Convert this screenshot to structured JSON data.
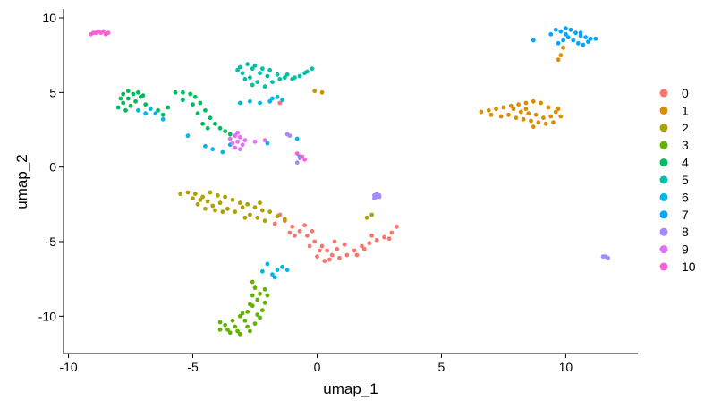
{
  "chart_data": {
    "type": "scatter",
    "title": "",
    "xlabel": "umap_1",
    "ylabel": "umap_2",
    "xlim": [
      -10.2,
      12.9
    ],
    "ylim": [
      -12.5,
      10.6
    ],
    "x_ticks": [
      -10,
      -5,
      0,
      5,
      10
    ],
    "y_ticks": [
      -10,
      -5,
      0,
      5,
      10
    ],
    "x_tick_labels": [
      "-10",
      "-5",
      "0",
      "5",
      "10"
    ],
    "y_tick_labels": [
      "-10",
      "-5",
      "0",
      "5",
      "10"
    ],
    "grid": false,
    "legend_position": "right",
    "series": [
      {
        "name": "0",
        "color": "#F8766D",
        "points": [
          [
            -1.3,
            -3.6
          ],
          [
            -1.0,
            -4.0
          ],
          [
            -0.7,
            -4.3
          ],
          [
            -0.4,
            -4.6
          ],
          [
            -0.1,
            -5.0
          ],
          [
            0.2,
            -5.3
          ],
          [
            0.4,
            -5.6
          ],
          [
            0.6,
            -5.9
          ],
          [
            0.9,
            -6.1
          ],
          [
            1.2,
            -5.9
          ],
          [
            1.5,
            -5.6
          ],
          [
            1.8,
            -5.3
          ],
          [
            2.1,
            -5.1
          ],
          [
            2.4,
            -4.9
          ],
          [
            2.7,
            -4.7
          ],
          [
            3.0,
            -4.4
          ],
          [
            3.2,
            -4.0
          ],
          [
            -0.9,
            -4.6
          ],
          [
            -0.3,
            -5.3
          ],
          [
            0.1,
            -5.6
          ],
          [
            0.5,
            -6.2
          ],
          [
            0.8,
            -5.5
          ],
          [
            1.1,
            -5.2
          ],
          [
            -1.1,
            -4.4
          ],
          [
            -0.5,
            -3.9
          ],
          [
            -0.2,
            -4.3
          ],
          [
            0.0,
            -6.0
          ],
          [
            0.3,
            -6.3
          ],
          [
            1.6,
            -5.9
          ],
          [
            1.9,
            -5.5
          ],
          [
            -1.5,
            -3.2
          ],
          [
            0.7,
            -5.0
          ],
          [
            2.2,
            -4.6
          ],
          [
            2.9,
            -4.8
          ],
          [
            -1.5,
            4.3
          ],
          [
            -1.7,
            -3.8
          ]
        ]
      },
      {
        "name": "1",
        "color": "#DB8E00",
        "points": [
          [
            6.6,
            3.7
          ],
          [
            6.9,
            3.8
          ],
          [
            7.2,
            3.9
          ],
          [
            7.5,
            4.0
          ],
          [
            7.8,
            4.1
          ],
          [
            8.1,
            4.2
          ],
          [
            8.4,
            4.3
          ],
          [
            8.7,
            4.4
          ],
          [
            9.0,
            4.3
          ],
          [
            9.3,
            4.0
          ],
          [
            9.6,
            3.7
          ],
          [
            9.8,
            3.4
          ],
          [
            8.0,
            3.3
          ],
          [
            8.3,
            3.2
          ],
          [
            8.6,
            3.1
          ],
          [
            8.9,
            3.0
          ],
          [
            9.2,
            2.9
          ],
          [
            7.4,
            3.4
          ],
          [
            7.7,
            3.5
          ],
          [
            8.2,
            3.7
          ],
          [
            8.5,
            3.6
          ],
          [
            8.8,
            3.5
          ],
          [
            9.1,
            3.3
          ],
          [
            9.4,
            3.4
          ],
          [
            9.7,
            3.9
          ],
          [
            7.0,
            3.5
          ],
          [
            9.5,
            3.0
          ],
          [
            8.7,
            2.7
          ],
          [
            -0.1,
            5.1
          ],
          [
            0.2,
            5.0
          ],
          [
            9.9,
            8.0
          ],
          [
            9.8,
            7.5
          ],
          [
            9.7,
            7.2
          ],
          [
            7.9,
            3.9
          ],
          [
            8.4,
            3.9
          ]
        ]
      },
      {
        "name": "2",
        "color": "#AEA200",
        "points": [
          [
            -5.5,
            -1.8
          ],
          [
            -5.2,
            -1.7
          ],
          [
            -4.9,
            -1.8
          ],
          [
            -4.6,
            -2.0
          ],
          [
            -4.3,
            -1.7
          ],
          [
            -4.0,
            -1.9
          ],
          [
            -3.7,
            -2.0
          ],
          [
            -3.4,
            -2.2
          ],
          [
            -3.1,
            -2.4
          ],
          [
            -2.8,
            -2.5
          ],
          [
            -2.5,
            -2.7
          ],
          [
            -2.2,
            -2.9
          ],
          [
            -1.9,
            -3.0
          ],
          [
            -1.6,
            -3.3
          ],
          [
            -1.3,
            -3.5
          ],
          [
            -4.8,
            -2.5
          ],
          [
            -4.5,
            -2.8
          ],
          [
            -4.2,
            -2.6
          ],
          [
            -3.9,
            -2.4
          ],
          [
            -3.6,
            -2.8
          ],
          [
            -3.3,
            -3.0
          ],
          [
            -3.0,
            -2.7
          ],
          [
            -2.7,
            -3.2
          ],
          [
            -2.4,
            -3.4
          ],
          [
            -2.1,
            -3.6
          ],
          [
            -4.7,
            -2.2
          ],
          [
            -4.4,
            -2.3
          ],
          [
            -5.0,
            -2.1
          ],
          [
            -3.8,
            -3.0
          ],
          [
            -2.9,
            -3.4
          ],
          [
            -2.3,
            -2.4
          ],
          [
            2.2,
            -3.2
          ],
          [
            2.0,
            -3.4
          ],
          [
            -4.1,
            -2.9
          ]
        ]
      },
      {
        "name": "3",
        "color": "#64B200",
        "points": [
          [
            -2.5,
            -8.1
          ],
          [
            -2.3,
            -8.5
          ],
          [
            -2.4,
            -8.9
          ],
          [
            -2.6,
            -9.3
          ],
          [
            -2.8,
            -9.7
          ],
          [
            -3.1,
            -10.0
          ],
          [
            -3.4,
            -10.3
          ],
          [
            -3.7,
            -10.6
          ],
          [
            -3.9,
            -10.9
          ],
          [
            -3.5,
            -11.1
          ],
          [
            -3.1,
            -11.2
          ],
          [
            -2.7,
            -11.0
          ],
          [
            -2.5,
            -10.5
          ],
          [
            -2.3,
            -10.1
          ],
          [
            -2.2,
            -9.6
          ],
          [
            -2.1,
            -9.1
          ],
          [
            -2.0,
            -8.6
          ],
          [
            -2.6,
            -7.7
          ],
          [
            -2.9,
            -10.3
          ],
          [
            -3.3,
            -10.7
          ],
          [
            -3.6,
            -10.9
          ],
          [
            -3.0,
            -9.8
          ],
          [
            -2.7,
            -9.2
          ],
          [
            -2.4,
            -9.9
          ],
          [
            -2.8,
            -10.7
          ],
          [
            -3.2,
            -11.0
          ],
          [
            -2.6,
            -8.6
          ],
          [
            -3.9,
            -10.4
          ],
          [
            -2.1,
            -8.2
          ]
        ]
      },
      {
        "name": "4",
        "color": "#00BD5C",
        "points": [
          [
            -8.0,
            4.0
          ],
          [
            -7.8,
            4.3
          ],
          [
            -7.6,
            4.6
          ],
          [
            -7.4,
            4.9
          ],
          [
            -7.2,
            5.0
          ],
          [
            -7.0,
            4.8
          ],
          [
            -7.7,
            3.8
          ],
          [
            -7.5,
            4.1
          ],
          [
            -7.3,
            4.4
          ],
          [
            -7.1,
            4.7
          ],
          [
            -6.9,
            4.2
          ],
          [
            -7.9,
            4.6
          ],
          [
            -7.6,
            5.1
          ],
          [
            -5.7,
            5.0
          ],
          [
            -5.4,
            5.0
          ],
          [
            -5.1,
            4.9
          ],
          [
            -4.9,
            4.7
          ],
          [
            -4.7,
            4.3
          ],
          [
            -4.5,
            3.8
          ],
          [
            -4.3,
            3.3
          ],
          [
            -4.1,
            2.9
          ],
          [
            -3.9,
            2.6
          ],
          [
            -3.7,
            2.4
          ],
          [
            -3.5,
            2.2
          ],
          [
            -5.4,
            4.5
          ],
          [
            -5.0,
            4.2
          ],
          [
            -4.8,
            3.6
          ],
          [
            -6.4,
            3.8
          ],
          [
            -6.2,
            3.5
          ],
          [
            -4.6,
            2.9
          ],
          [
            -6.0,
            4.0
          ],
          [
            -7.8,
            4.9
          ],
          [
            -4.4,
            2.6
          ]
        ]
      },
      {
        "name": "5",
        "color": "#00C1A7",
        "points": [
          [
            -3.1,
            6.7
          ],
          [
            -2.8,
            6.9
          ],
          [
            -2.5,
            6.8
          ],
          [
            -2.2,
            6.6
          ],
          [
            -1.9,
            6.5
          ],
          [
            -1.6,
            6.2
          ],
          [
            -1.3,
            6.0
          ],
          [
            -1.0,
            5.9
          ],
          [
            -0.7,
            6.1
          ],
          [
            -0.4,
            6.4
          ],
          [
            -0.2,
            6.6
          ],
          [
            -3.0,
            6.3
          ],
          [
            -2.7,
            6.0
          ],
          [
            -2.4,
            5.7
          ],
          [
            -2.1,
            5.4
          ],
          [
            -1.8,
            5.7
          ],
          [
            -1.5,
            5.9
          ],
          [
            -2.9,
            5.9
          ],
          [
            -2.6,
            5.5
          ],
          [
            -2.3,
            6.3
          ],
          [
            -2.0,
            6.1
          ],
          [
            -0.9,
            6.0
          ],
          [
            -0.5,
            6.3
          ],
          [
            -3.2,
            6.5
          ],
          [
            -1.2,
            6.2
          ],
          [
            -2.6,
            6.6
          ]
        ]
      },
      {
        "name": "6",
        "color": "#00B6EB",
        "points": [
          [
            -3.1,
            4.3
          ],
          [
            -2.7,
            4.4
          ],
          [
            -2.3,
            4.3
          ],
          [
            -1.9,
            4.4
          ],
          [
            -1.6,
            4.7
          ],
          [
            -1.4,
            4.5
          ],
          [
            -6.7,
            3.9
          ],
          [
            -6.5,
            3.6
          ],
          [
            -7.2,
            3.8
          ],
          [
            -6.9,
            3.6
          ],
          [
            -6.2,
            3.2
          ],
          [
            -4.5,
            1.4
          ],
          [
            -4.2,
            1.2
          ],
          [
            -3.8,
            1.0
          ],
          [
            -3.5,
            1.5
          ],
          [
            -1.4,
            -6.7
          ],
          [
            -1.6,
            -6.9
          ],
          [
            -1.8,
            -7.2
          ],
          [
            -2.0,
            -6.5
          ],
          [
            -1.7,
            -7.4
          ],
          [
            -1.2,
            -6.9
          ],
          [
            -2.2,
            -7.0
          ],
          [
            -0.8,
            1.9
          ],
          [
            -2.0,
            1.6
          ],
          [
            -0.7,
            0.7
          ],
          [
            -1.8,
            4.6
          ],
          [
            -5.2,
            2.1
          ]
        ]
      },
      {
        "name": "7",
        "color": "#06A4FF",
        "points": [
          [
            9.6,
            9.2
          ],
          [
            9.8,
            9.1
          ],
          [
            10.0,
            9.3
          ],
          [
            10.2,
            9.2
          ],
          [
            10.4,
            9.0
          ],
          [
            10.6,
            8.8
          ],
          [
            10.8,
            8.7
          ],
          [
            11.0,
            8.6
          ],
          [
            11.2,
            8.6
          ],
          [
            10.1,
            8.7
          ],
          [
            10.3,
            8.5
          ],
          [
            10.5,
            8.3
          ],
          [
            10.7,
            8.2
          ],
          [
            9.9,
            8.5
          ],
          [
            9.7,
            8.3
          ],
          [
            8.7,
            8.5
          ],
          [
            9.4,
            8.9
          ],
          [
            10.9,
            8.4
          ],
          [
            10.0,
            8.9
          ],
          [
            10.6,
            9.0
          ]
        ]
      },
      {
        "name": "8",
        "color": "#A58AFF",
        "points": [
          [
            2.3,
            -1.9
          ],
          [
            2.4,
            -2.0
          ],
          [
            2.5,
            -1.9
          ],
          [
            2.4,
            -1.8
          ],
          [
            2.3,
            -2.1
          ],
          [
            2.5,
            -2.0
          ],
          [
            11.5,
            -6.0
          ],
          [
            11.6,
            -6.0
          ],
          [
            11.7,
            -6.1
          ],
          [
            -1.1,
            2.1
          ],
          [
            -1.2,
            2.2
          ],
          [
            -0.8,
            0.3
          ],
          [
            -0.7,
            0.6
          ]
        ]
      },
      {
        "name": "9",
        "color": "#DF70F8",
        "points": [
          [
            -3.5,
            1.9
          ],
          [
            -3.3,
            2.1
          ],
          [
            -3.1,
            2.0
          ],
          [
            -2.9,
            1.8
          ],
          [
            -3.4,
            1.6
          ],
          [
            -3.2,
            1.7
          ],
          [
            -3.0,
            1.5
          ],
          [
            -3.3,
            1.3
          ],
          [
            -3.1,
            1.2
          ],
          [
            -2.1,
            1.8
          ],
          [
            -2.5,
            1.7
          ],
          [
            -3.2,
            2.3
          ]
        ]
      },
      {
        "name": "10",
        "color": "#FB61D7",
        "points": [
          [
            -9.1,
            8.9
          ],
          [
            -8.9,
            9.0
          ],
          [
            -8.7,
            9.0
          ],
          [
            -8.5,
            8.9
          ],
          [
            -8.8,
            9.1
          ],
          [
            -8.6,
            9.1
          ],
          [
            -9.0,
            9.0
          ],
          [
            -8.4,
            9.0
          ],
          [
            -0.6,
            0.7
          ],
          [
            -0.5,
            0.5
          ],
          [
            -0.8,
            0.9
          ]
        ]
      }
    ]
  }
}
